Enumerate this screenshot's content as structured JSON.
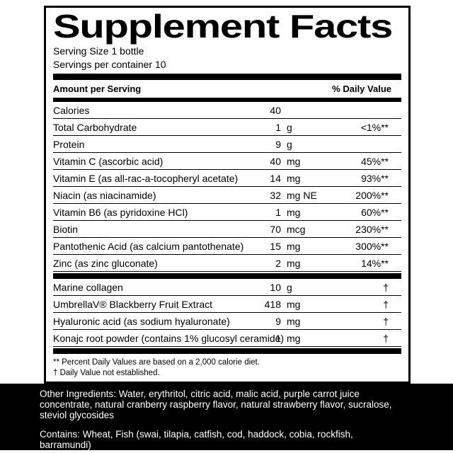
{
  "panel": {
    "title": "Supplement Facts",
    "serving_size": "Serving Size 1 bottle",
    "servings_per_container": "Servings per container 10",
    "columns": {
      "amount": "Amount per Serving",
      "daily_value": "% Daily Value"
    },
    "nutrients": [
      {
        "name": "Calories",
        "num": "40",
        "unit": "",
        "dv": ""
      },
      {
        "name": "Total Carbohydrate",
        "num": "1",
        "unit": "g",
        "dv": "<1%**"
      },
      {
        "name": "Protein",
        "num": "9",
        "unit": "g",
        "dv": ""
      },
      {
        "name": "Vitamin C (ascorbic acid)",
        "num": "40",
        "unit": "mg",
        "dv": "45%**"
      },
      {
        "name": "Vitamin E (as all-rac-a-tocopheryl acetate)",
        "num": "14",
        "unit": "mg",
        "dv": "93%**"
      },
      {
        "name": "Niacin (as niacinamide)",
        "num": "32",
        "unit": "mg NE",
        "dv": "200%**"
      },
      {
        "name": "Vitamin B6 (as pyridoxine HCl)",
        "num": "1",
        "unit": "mg",
        "dv": "60%**"
      },
      {
        "name": "Biotin",
        "num": "70",
        "unit": "mcg",
        "dv": "230%**"
      },
      {
        "name": "Pantothenic Acid (as calcium pantothenate)",
        "num": "15",
        "unit": "mg",
        "dv": "300%**"
      },
      {
        "name": "Zinc (as zinc gluconate)",
        "num": "2",
        "unit": "mg",
        "dv": "14%**"
      }
    ],
    "other_actives": [
      {
        "name": "Marine collagen",
        "num": "10",
        "unit": "g",
        "dv": "†"
      },
      {
        "name": "UmbrellaV® Blackberry Fruit Extract",
        "num": "418",
        "unit": "mg",
        "dv": "†"
      },
      {
        "name": "Hyaluronic acid (as sodium hyaluronate)",
        "num": "9",
        "unit": "mg",
        "dv": "†"
      },
      {
        "name": "Konajc root powder (contains 1% glucosyl ceramide)",
        "num": "1",
        "unit": "mg",
        "dv": "†"
      }
    ],
    "footnotes": [
      "** Percent Daily Values are based on a 2,000 calorie diet.",
      "† Daily Value not established."
    ]
  },
  "ingredients_band": {
    "other_ingredients_lines": [
      "Other Ingredients: Water, erythritol, citric acid, malic acid, purple carrot juice",
      "concentrate, natural cranberry raspberry flavor, natural strawberry flavor, sucralose,",
      "steviol glycosides"
    ],
    "contains_lines": [
      "Contains: Wheat, Fish (swai, tilapia, catfish, cod, haddock, cobia, rockfish,",
      "barramundi)"
    ]
  },
  "colors": {
    "label_text": "#000000",
    "label_bg": "#ffffff",
    "band_bg": "#000000",
    "band_text": "#ffffff"
  }
}
